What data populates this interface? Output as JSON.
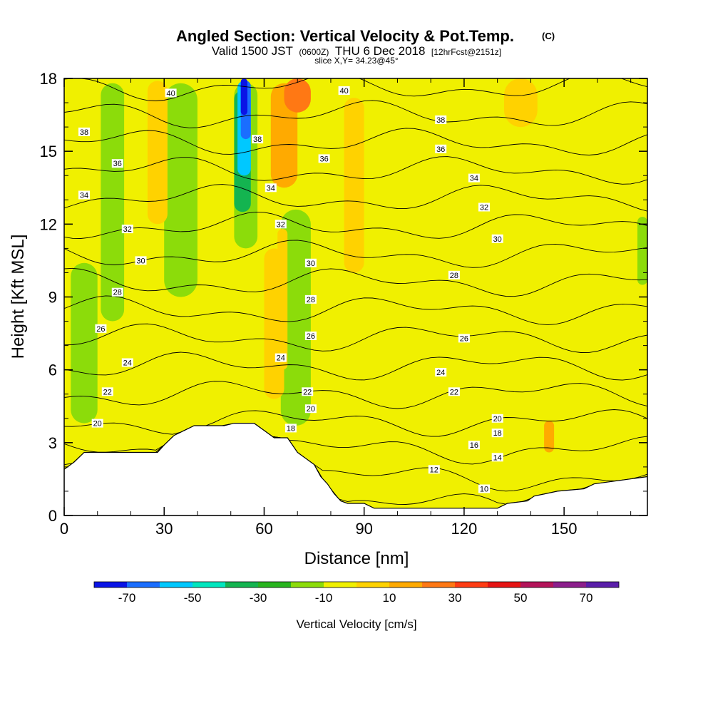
{
  "title": {
    "main": "Angled Section: Vertical Velocity & Pot.Temp.",
    "mark": "(C)",
    "valid_prefix": "Valid 1500 JST",
    "utc": "(0600Z)",
    "date": "THU 6 Dec 2018",
    "forecast": "[12hrFcst@2151z]",
    "slice": "slice X,Y= 34.23@45°"
  },
  "chart_data": {
    "type": "heatmap",
    "xlabel": "Distance [nm]",
    "ylabel": "Height [Kft MSL]",
    "xlim": [
      0,
      175
    ],
    "ylim": [
      0,
      18
    ],
    "x_ticks": [
      "0",
      "30",
      "60",
      "90",
      "120",
      "150"
    ],
    "x_tick_values": [
      0,
      30,
      60,
      90,
      120,
      150
    ],
    "y_ticks": [
      "0",
      "3",
      "6",
      "9",
      "12",
      "15",
      "18"
    ],
    "y_tick_values": [
      0,
      3,
      6,
      9,
      12,
      15,
      18
    ],
    "terrain": [
      [
        0,
        1.9
      ],
      [
        3,
        2.2
      ],
      [
        6,
        2.6
      ],
      [
        28,
        2.6
      ],
      [
        30,
        2.9
      ],
      [
        33,
        3.3
      ],
      [
        36,
        3.5
      ],
      [
        39,
        3.7
      ],
      [
        48,
        3.7
      ],
      [
        51,
        3.8
      ],
      [
        57,
        3.8
      ],
      [
        60,
        3.5
      ],
      [
        63,
        3.2
      ],
      [
        67,
        3.2
      ],
      [
        70,
        2.6
      ],
      [
        73,
        2.3
      ],
      [
        75,
        2.1
      ],
      [
        77,
        1.6
      ],
      [
        79,
        1.3
      ],
      [
        81,
        0.9
      ],
      [
        83,
        0.6
      ],
      [
        85,
        0.5
      ],
      [
        90,
        0.5
      ],
      [
        93,
        0.3
      ],
      [
        130,
        0.3
      ],
      [
        133,
        0.5
      ],
      [
        139,
        0.6
      ],
      [
        141,
        0.8
      ],
      [
        148,
        1.0
      ],
      [
        156,
        1.1
      ],
      [
        159,
        1.3
      ],
      [
        175,
        1.6
      ]
    ],
    "theta_contours": [
      10,
      12,
      14,
      16,
      18,
      20,
      22,
      24,
      26,
      28,
      30,
      32,
      34,
      36,
      38,
      40
    ],
    "theta_labels": [
      {
        "text": "20",
        "x": 10,
        "y": 3.8
      },
      {
        "text": "22",
        "x": 13,
        "y": 5.1
      },
      {
        "text": "24",
        "x": 19,
        "y": 6.3
      },
      {
        "text": "26",
        "x": 11,
        "y": 7.7
      },
      {
        "text": "28",
        "x": 16,
        "y": 9.2
      },
      {
        "text": "30",
        "x": 23,
        "y": 10.5
      },
      {
        "text": "32",
        "x": 19,
        "y": 11.8
      },
      {
        "text": "34",
        "x": 6,
        "y": 13.2
      },
      {
        "text": "36",
        "x": 16,
        "y": 14.5
      },
      {
        "text": "38",
        "x": 6,
        "y": 15.8
      },
      {
        "text": "40",
        "x": 32,
        "y": 17.4
      },
      {
        "text": "40",
        "x": 84,
        "y": 17.5
      },
      {
        "text": "38",
        "x": 58,
        "y": 15.5
      },
      {
        "text": "36",
        "x": 78,
        "y": 14.7
      },
      {
        "text": "34",
        "x": 62,
        "y": 13.5
      },
      {
        "text": "32",
        "x": 65,
        "y": 12.0
      },
      {
        "text": "30",
        "x": 74,
        "y": 10.4
      },
      {
        "text": "28",
        "x": 74,
        "y": 8.9
      },
      {
        "text": "26",
        "x": 74,
        "y": 7.4
      },
      {
        "text": "24",
        "x": 65,
        "y": 6.5
      },
      {
        "text": "22",
        "x": 73,
        "y": 5.1
      },
      {
        "text": "20",
        "x": 74,
        "y": 4.4
      },
      {
        "text": "18",
        "x": 68,
        "y": 3.6
      },
      {
        "text": "38",
        "x": 113,
        "y": 16.3
      },
      {
        "text": "36",
        "x": 113,
        "y": 15.1
      },
      {
        "text": "34",
        "x": 123,
        "y": 13.9
      },
      {
        "text": "32",
        "x": 126,
        "y": 12.7
      },
      {
        "text": "30",
        "x": 130,
        "y": 11.4
      },
      {
        "text": "28",
        "x": 117,
        "y": 9.9
      },
      {
        "text": "26",
        "x": 120,
        "y": 7.3
      },
      {
        "text": "24",
        "x": 113,
        "y": 5.9
      },
      {
        "text": "22",
        "x": 117,
        "y": 5.1
      },
      {
        "text": "20",
        "x": 130,
        "y": 4.0
      },
      {
        "text": "18",
        "x": 130,
        "y": 3.4
      },
      {
        "text": "16",
        "x": 123,
        "y": 2.9
      },
      {
        "text": "14",
        "x": 130,
        "y": 2.4
      },
      {
        "text": "12",
        "x": 111,
        "y": 1.9
      },
      {
        "text": "10",
        "x": 126,
        "y": 1.1
      }
    ],
    "colorbar": {
      "label": "Vertical Velocity [cm/s]",
      "tick_labels": [
        "-70",
        "-50",
        "-30",
        "-10",
        "10",
        "30",
        "50",
        "70"
      ],
      "tick_values": [
        -70,
        -50,
        -30,
        -10,
        10,
        30,
        50,
        70
      ],
      "levels": [
        -80,
        -70,
        -60,
        -50,
        -40,
        -30,
        -20,
        -10,
        0,
        10,
        20,
        30,
        40,
        50,
        60,
        70,
        80
      ],
      "colors": [
        "#0a14e6",
        "#1a6eff",
        "#00c8ff",
        "#00e6be",
        "#14b450",
        "#28b41e",
        "#8cdc0a",
        "#f0f000",
        "#ffd200",
        "#ffaa00",
        "#ff7814",
        "#ff3c14",
        "#e61414",
        "#b4145a",
        "#8c1e8c",
        "#5a1eaa"
      ]
    }
  }
}
